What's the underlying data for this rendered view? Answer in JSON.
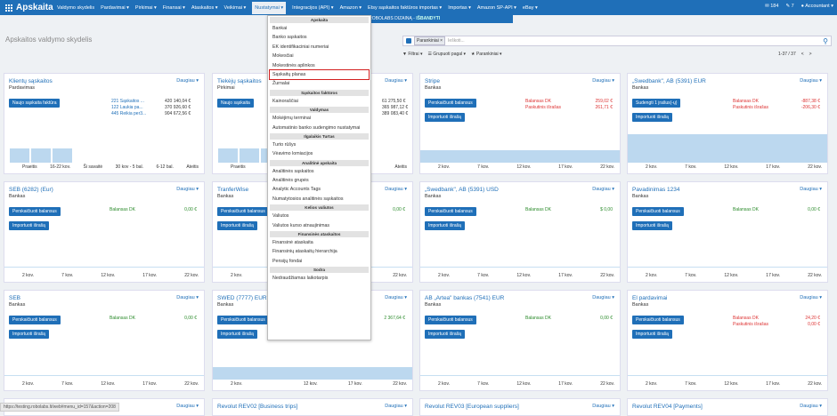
{
  "app_title": "Apskaita",
  "nav": [
    "Valdymo skydelis",
    "Pardavimai ▾",
    "Pirkimai ▾",
    "Finansai ▾",
    "Ataskaitos ▾",
    "Veikimai ▾",
    "Nustatymai ▾",
    "Integracijos (API) ▾",
    "Amazon ▾",
    "Etsy sąskaitos faktūros importas ▾",
    "Importas ▾",
    "Amazon SP-API ▾",
    "eBay ▾"
  ],
  "right": {
    "mail": "184",
    "chat": "7",
    "account": "Accountant ▾"
  },
  "banner": "ŠBANDYTI NAUJĄ ROBOLABS DIZAINĄ - ",
  "banner_link": "IŠBANDYTI",
  "page_title": "Apskaitos valdymo skydelis",
  "search": {
    "chip": "Parankiniai ×",
    "placeholder": "Ieškoti..."
  },
  "toolbar": {
    "filters": "▼ Filtrai ▾",
    "group": "☰ Grupuoti pagal ▾",
    "fav": "★ Parankiniai ▾"
  },
  "pager": {
    "range": "1-37 / 37",
    "prev": "<",
    "next": ">"
  },
  "dropdown_label": "Daugiau ▾",
  "menu": [
    {
      "h": "Apskaita"
    },
    {
      "t": "Bankai"
    },
    {
      "t": "Banko sąskaitos"
    },
    {
      "t": "EK identifikaciniai numeriai"
    },
    {
      "t": "Mokesčiai"
    },
    {
      "t": "Mokestinės aplinkos"
    },
    {
      "t": "Sąskaitų planas",
      "sel": true
    },
    {
      "t": "Žurnalai"
    },
    {
      "h": "Sąskaitos faktūros"
    },
    {
      "t": "Kainoraščiai"
    },
    {
      "h": "Valdymas"
    },
    {
      "t": "Mokėjimų terminai"
    },
    {
      "t": "Automatinio banko sudengimo nustatymai"
    },
    {
      "h": "Ilgalaikis Turtas"
    },
    {
      "t": "Turto rūšys"
    },
    {
      "t": "Vėavimo lomiacijos"
    },
    {
      "h": "Analitinė apskaita"
    },
    {
      "t": "Analitinės sąskaitos"
    },
    {
      "t": "Analitinės grupės"
    },
    {
      "t": "Analytic Accounts Tags"
    },
    {
      "t": "Numatytosios analitinės sąskaitos"
    },
    {
      "h": "Kelios valiutos"
    },
    {
      "t": "Valiutos"
    },
    {
      "t": "Valiutos kurso atnaujinimas"
    },
    {
      "h": "Finansinės ataskaitos"
    },
    {
      "t": "Finansinė ataskaita"
    },
    {
      "t": "Finansinių ataskaitų hierarchija"
    },
    {
      "t": "Pensijų fondai"
    },
    {
      "h": "Sodra"
    },
    {
      "t": "Nedraudžiamas laikotarpis"
    }
  ],
  "cards": [
    {
      "title": "Klientų sąskaitos",
      "sub": "Pardavimas",
      "btn1": "Naujo sąskaita faktūra",
      "axis": [
        "Praeitis",
        "16-22 kov.",
        "Ši savaitė",
        "30 kov - 5 bal.",
        "6-12 bal.",
        "Ateitis"
      ],
      "list": [
        [
          "221 Sąskaitos ...",
          "420 140,04 €"
        ],
        [
          "122 Laukia pa...",
          "370 926,60 €"
        ],
        [
          "445 Reikia per3...",
          "904 672,56 €"
        ]
      ]
    },
    {
      "title": "Tiekėjų sąskaitos",
      "sub": "Pirkimai",
      "btn1": "Naujo sąskaita",
      "axis": [
        "Praeitis",
        "16-22 k.",
        "",
        "",
        "",
        "Ateitis"
      ],
      "list": [
        [
          "",
          "61 275,50 €"
        ],
        [
          "",
          "365 987,12 €"
        ],
        [
          "",
          "389 083,40 €"
        ]
      ]
    },
    {
      "title": "Stripe",
      "sub": "Bankas",
      "btn1": "Perskaičiuoti balansus",
      "btn2": "Importuoti išrašą",
      "bal": "Balansas DK",
      "bal2": "Paskutinis išrašas",
      "v1": "259,02 €",
      "v2": "261,71 €",
      "axis": [
        "2 kov.",
        "7 kov.",
        "12 kov.",
        "17 kov.",
        "22 kov."
      ]
    },
    {
      "title": "„Swedbank\", AB (5391) EUR",
      "sub": "Bankas",
      "btn1": "Sudengti 1 įrašus(-ų)",
      "btn2": "Importuoti išrašą",
      "bal": "Balansas DK",
      "bal2": "Paskutinis išrašas",
      "v1": "-887,38 €",
      "v2": "-206,30 €",
      "axis": [
        "2 kov.",
        "7 kov.",
        "12 kov.",
        "17 kov.",
        "22 kov."
      ]
    },
    {
      "title": "SEB (6282) (Eur)",
      "sub": "Bankas",
      "btn1": "Perskaičiuoti balansus",
      "btn2": "Importuoti išrašą",
      "bal": "Balansas DK",
      "v1": "0,00 €",
      "axis": [
        "2 kov.",
        "7 kov.",
        "12 kov.",
        "17 kov.",
        "22 kov."
      ]
    },
    {
      "title": "TranferWise",
      "sub": "Bankas",
      "btn1": "Perskaičiuoti balansus",
      "btn2": "Importuoti išrašą",
      "bal": "",
      "v1": "0,00 €",
      "axis": [
        "2 kov.",
        "",
        "",
        "17 kov.",
        "22 kov."
      ]
    },
    {
      "title": "„Swedbank\", AB (5391) USD",
      "sub": "Bankas",
      "btn1": "Perskaičiuoti balansus",
      "btn2": "Importuoti išrašą",
      "bal": "Balansas DK",
      "v1": "$ 0,00",
      "axis": [
        "2 kov.",
        "7 kov.",
        "12 kov.",
        "17 kov.",
        "22 kov."
      ]
    },
    {
      "title": "Pavadinimas 1234",
      "sub": "Bankas",
      "btn1": "Perskaičiuoti balansus",
      "btn2": "Importuoti išrašą",
      "bal": "Balansas DK",
      "v1": "0,00 €",
      "axis": [
        "2 kov.",
        "7 kov.",
        "12 kov.",
        "17 kov.",
        "22 kov."
      ]
    },
    {
      "title": "SEB",
      "sub": "Bankas",
      "btn1": "Perskaičiuoti balansus",
      "btn2": "Importuoti išrašą",
      "bal": "Balansas DK",
      "v1": "0,00 €",
      "axis": [
        "2 kov.",
        "7 kov.",
        "12 kov.",
        "17 kov.",
        "22 kov."
      ]
    },
    {
      "title": "SWED (7777) EUR",
      "sub": "Bankas",
      "btn1": "Perskaičiuoti balansus",
      "btn2": "Importuoti išrašą",
      "bal": "",
      "v1": "2 367,64 €",
      "axis": [
        "2 kov.",
        "",
        "12 kov.",
        "17 kov.",
        "22 kov."
      ]
    },
    {
      "title": "AB „Artea\" bankas (7541) EUR",
      "sub": "Bankas",
      "btn1": "Perskaičiuoti balansus",
      "btn2": "Importuoti išrašą",
      "bal": "Balansas DK",
      "v1": "0,00 €",
      "axis": [
        "2 kov.",
        "7 kov.",
        "12 kov.",
        "17 kov.",
        "22 kov."
      ]
    },
    {
      "title": "El pardavimai",
      "sub": "Bankas",
      "btn1": "Perskaičiuoti balansus",
      "btn2": "Importuoti išrašą",
      "bal": "Balansas DK",
      "bal2": "Paskutinis išrašas",
      "v1": "24,20 €",
      "v2": "0,00 €",
      "axis": [
        "2 kov.",
        "7 kov.",
        "12 kov.",
        "17 kov.",
        "22 kov."
      ]
    }
  ],
  "bottom_cards": [
    "",
    "Revolut REV02 [Business trips]",
    "Revolut REV03 [European suppliers]",
    "Revolut REV04 [Payments]"
  ],
  "status_url": "https://testing.robolabs.lt/web#menu_id=157&action=208"
}
